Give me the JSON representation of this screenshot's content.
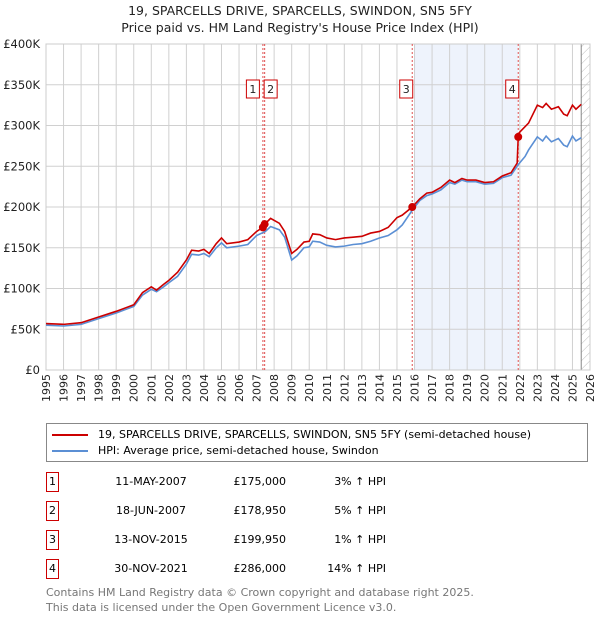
{
  "chart_data": {
    "type": "line",
    "title": "19, SPARCELLS DRIVE, SPARCELLS, SWINDON, SN5 5FY",
    "subtitle": "Price paid vs. HM Land Registry's House Price Index (HPI)",
    "xlim": [
      1995,
      2026
    ],
    "ylim": [
      0,
      400000
    ],
    "yticks": [
      {
        "v": 0,
        "l": "£0"
      },
      {
        "v": 50000,
        "l": "£50K"
      },
      {
        "v": 100000,
        "l": "£100K"
      },
      {
        "v": 150000,
        "l": "£150K"
      },
      {
        "v": 200000,
        "l": "£200K"
      },
      {
        "v": 250000,
        "l": "£250K"
      },
      {
        "v": 300000,
        "l": "£300K"
      },
      {
        "v": 350000,
        "l": "£350K"
      },
      {
        "v": 400000,
        "l": "£400K"
      }
    ],
    "xticks": [
      "1995",
      "1996",
      "1997",
      "1998",
      "1999",
      "2000",
      "2001",
      "2002",
      "2003",
      "2004",
      "2005",
      "2006",
      "2007",
      "2008",
      "2009",
      "2010",
      "2011",
      "2012",
      "2013",
      "2014",
      "2015",
      "2016",
      "2017",
      "2018",
      "2019",
      "2020",
      "2021",
      "2022",
      "2023",
      "2024",
      "2025",
      "2026"
    ],
    "grid": true,
    "shaded_range": [
      2016,
      2021.91
    ],
    "hatched_from": 2025.5,
    "series": [
      {
        "name": "19, SPARCELLS DRIVE, SPARCELLS, SWINDON, SN5 5FY (semi-detached house)",
        "color": "#cc0000",
        "x": [
          1995,
          1996,
          1997,
          1998,
          1999,
          2000,
          2000.5,
          2001,
          2001.3,
          2001.7,
          2002,
          2002.5,
          2003,
          2003.3,
          2003.7,
          2004,
          2004.3,
          2004.7,
          2005,
          2005.3,
          2006,
          2006.5,
          2007,
          2007.36,
          2007.46,
          2007.8,
          2008.3,
          2008.6,
          2009,
          2009.3,
          2009.7,
          2010,
          2010.2,
          2010.6,
          2011,
          2011.5,
          2012,
          2012.5,
          2013,
          2013.5,
          2014,
          2014.5,
          2015,
          2015.3,
          2015.87,
          2016.3,
          2016.7,
          2017,
          2017.5,
          2018,
          2018.3,
          2018.7,
          2019,
          2019.5,
          2020,
          2020.5,
          2021,
          2021.5,
          2021.85,
          2021.91,
          2022,
          2022.5,
          2023,
          2023.3,
          2023.5,
          2023.8,
          2024.2,
          2024.5,
          2024.7,
          2025,
          2025.2,
          2025.5
        ],
        "y": [
          57000,
          56000,
          58000,
          65000,
          72000,
          80000,
          95000,
          102000,
          98000,
          105000,
          110000,
          120000,
          135000,
          147000,
          146000,
          148000,
          143000,
          155000,
          162000,
          155000,
          157000,
          160000,
          170000,
          175000,
          178950,
          186000,
          180000,
          170000,
          143000,
          148000,
          157000,
          158000,
          167000,
          166000,
          162000,
          160000,
          162000,
          163000,
          164000,
          168000,
          170000,
          175000,
          187000,
          190000,
          199950,
          210000,
          217000,
          218000,
          224000,
          233000,
          230000,
          235000,
          233000,
          233000,
          230000,
          231000,
          238000,
          242000,
          254000,
          286000,
          292000,
          303000,
          325000,
          322000,
          327000,
          320000,
          323000,
          314000,
          312000,
          325000,
          320000,
          326000
        ]
      },
      {
        "name": "HPI: Average price, semi-detached house, Swindon",
        "color": "#5b8fd4",
        "x": [
          1995,
          1996,
          1997,
          1998,
          1999,
          2000,
          2000.5,
          2001,
          2001.3,
          2001.7,
          2002,
          2002.5,
          2003,
          2003.3,
          2003.7,
          2004,
          2004.3,
          2004.7,
          2005,
          2005.3,
          2006,
          2006.5,
          2007,
          2007.5,
          2007.8,
          2008.3,
          2008.6,
          2009,
          2009.3,
          2009.7,
          2010,
          2010.2,
          2010.6,
          2011,
          2011.5,
          2012,
          2012.5,
          2013,
          2013.5,
          2014,
          2014.5,
          2015,
          2015.3,
          2015.87,
          2016.3,
          2016.7,
          2017,
          2017.5,
          2018,
          2018.3,
          2018.7,
          2019,
          2019.5,
          2020,
          2020.5,
          2021,
          2021.5,
          2021.91,
          2022.3,
          2022.5,
          2023,
          2023.3,
          2023.5,
          2023.8,
          2024.2,
          2024.5,
          2024.7,
          2025,
          2025.2,
          2025.5
        ],
        "y": [
          55000,
          54000,
          56000,
          63000,
          70000,
          78000,
          92000,
          99000,
          96000,
          102000,
          107000,
          115000,
          130000,
          142000,
          141000,
          143000,
          139000,
          150000,
          156000,
          150000,
          152000,
          154000,
          165000,
          170000,
          176000,
          172000,
          163000,
          135000,
          140000,
          150000,
          151000,
          158000,
          157000,
          153000,
          151000,
          152000,
          154000,
          155000,
          158000,
          162000,
          165000,
          172000,
          178000,
          196000,
          208000,
          214000,
          216000,
          221000,
          230000,
          228000,
          233000,
          231000,
          231000,
          228000,
          229000,
          236000,
          239000,
          252000,
          262000,
          270000,
          286000,
          281000,
          287000,
          280000,
          284000,
          276000,
          274000,
          287000,
          281000,
          285000
        ]
      }
    ],
    "markers": [
      {
        "id": "1",
        "x": 2007.36,
        "y": 175000
      },
      {
        "id": "2",
        "x": 2007.46,
        "y": 178950
      },
      {
        "id": "3",
        "x": 2015.87,
        "y": 199950
      },
      {
        "id": "4",
        "x": 2021.91,
        "y": 286000
      }
    ]
  },
  "legend": [
    "19, SPARCELLS DRIVE, SPARCELLS, SWINDON, SN5 5FY (semi-detached house)",
    "HPI: Average price, semi-detached house, Swindon"
  ],
  "transactions": [
    {
      "num": "1",
      "date": "11-MAY-2007",
      "price": "£175,000",
      "hpi": "3% ↑ HPI"
    },
    {
      "num": "2",
      "date": "18-JUN-2007",
      "price": "£178,950",
      "hpi": "5% ↑ HPI"
    },
    {
      "num": "3",
      "date": "13-NOV-2015",
      "price": "£199,950",
      "hpi": "1% ↑ HPI"
    },
    {
      "num": "4",
      "date": "30-NOV-2021",
      "price": "£286,000",
      "hpi": "14% ↑ HPI"
    }
  ],
  "footer": [
    "Contains HM Land Registry data © Crown copyright and database right 2025.",
    "This data is licensed under the Open Government Licence v3.0."
  ]
}
